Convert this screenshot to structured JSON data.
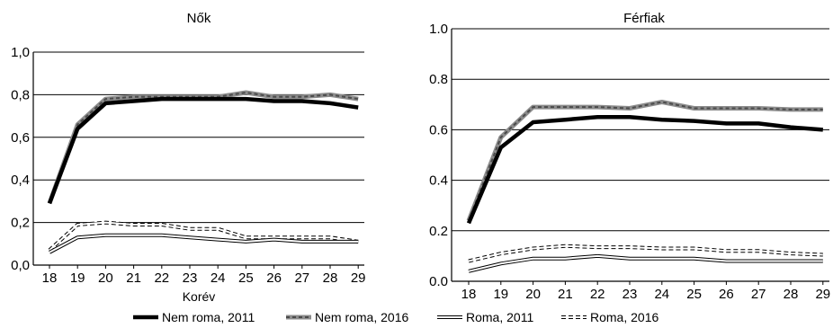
{
  "chart_data": [
    {
      "type": "line",
      "title": "Nők",
      "xlabel": "Korév",
      "ylabel": "",
      "x": [
        18,
        19,
        20,
        21,
        22,
        23,
        24,
        25,
        26,
        27,
        28,
        29
      ],
      "ylim": [
        0,
        1
      ],
      "yticks": [
        "0,0",
        "0,2",
        "0,4",
        "0,6",
        "0,8",
        "1,0"
      ],
      "grid": "horizontal",
      "series": [
        {
          "name": "Nem roma, 2011",
          "values": [
            0.29,
            0.64,
            0.76,
            0.77,
            0.78,
            0.78,
            0.78,
            0.78,
            0.77,
            0.77,
            0.76,
            0.74
          ]
        },
        {
          "name": "Nem roma, 2016",
          "values": [
            0.29,
            0.66,
            0.78,
            0.79,
            0.79,
            0.79,
            0.79,
            0.81,
            0.79,
            0.79,
            0.8,
            0.78
          ]
        },
        {
          "name": "Roma, 2011",
          "values": [
            0.06,
            0.13,
            0.14,
            0.14,
            0.14,
            0.13,
            0.12,
            0.11,
            0.12,
            0.11,
            0.11,
            0.11
          ]
        },
        {
          "name": "Roma, 2016",
          "values": [
            0.07,
            0.19,
            0.2,
            0.19,
            0.19,
            0.17,
            0.17,
            0.13,
            0.13,
            0.13,
            0.13,
            0.11
          ]
        }
      ]
    },
    {
      "type": "line",
      "title": "Férfiak",
      "xlabel": "",
      "ylabel": "",
      "x": [
        18,
        19,
        20,
        21,
        22,
        23,
        24,
        25,
        26,
        27,
        28,
        29
      ],
      "ylim": [
        0,
        1
      ],
      "yticks": [
        "0.0",
        "0.2",
        "0.4",
        "0.6",
        "0.8",
        "1.0"
      ],
      "grid": "horizontal",
      "series": [
        {
          "name": "Nem roma, 2011",
          "values": [
            0.23,
            0.53,
            0.63,
            0.64,
            0.65,
            0.65,
            0.64,
            0.635,
            0.625,
            0.625,
            0.61,
            0.6
          ]
        },
        {
          "name": "Nem roma, 2016",
          "values": [
            0.24,
            0.57,
            0.69,
            0.69,
            0.69,
            0.685,
            0.71,
            0.685,
            0.685,
            0.685,
            0.68,
            0.68
          ]
        },
        {
          "name": "Roma, 2011",
          "values": [
            0.04,
            0.07,
            0.09,
            0.09,
            0.1,
            0.09,
            0.09,
            0.09,
            0.08,
            0.08,
            0.08,
            0.08
          ]
        },
        {
          "name": "Roma, 2016",
          "values": [
            0.08,
            0.11,
            0.13,
            0.14,
            0.135,
            0.135,
            0.13,
            0.13,
            0.12,
            0.12,
            0.11,
            0.105
          ]
        }
      ]
    }
  ],
  "legend": {
    "placement": "bottom",
    "items": [
      {
        "label": "Nem roma, 2011",
        "style": "thick-solid"
      },
      {
        "label": "Nem roma, 2016",
        "style": "thick-dashed"
      },
      {
        "label": "Roma, 2011",
        "style": "double-solid"
      },
      {
        "label": "Roma, 2016",
        "style": "double-dashed"
      }
    ]
  },
  "colors": {
    "line_dark": "#000000",
    "line_gray": "#8c8c8c",
    "grid": "#000000",
    "background": "#ffffff"
  }
}
